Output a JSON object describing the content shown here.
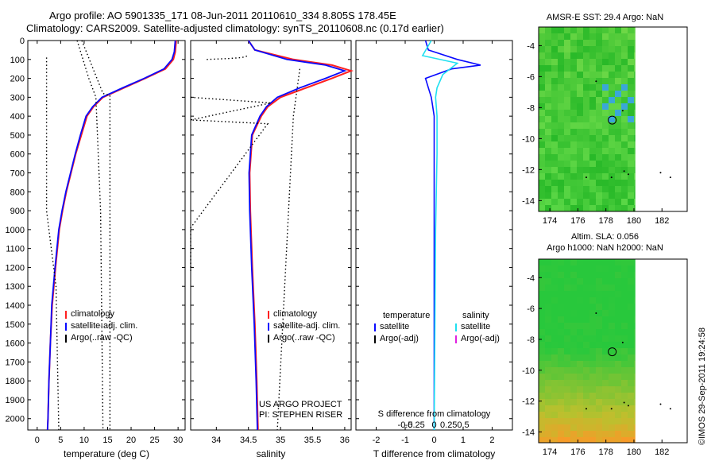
{
  "header": {
    "title_line1": "Argo profile: AO 5901335_171 08-Jun-2011 20110610_334 8.805S 178.45E",
    "title_line2": "Climatology: CARS2009. Satellite-adjusted climatology: synTS_20110608.nc (0.17d earlier)"
  },
  "watermark": "©IMOS 29-Sep-2011 19:24:58",
  "colors": {
    "climatology": "#ff2020",
    "satellite": "#0a0aff",
    "argo": "#000000",
    "sal_satellite": "#20e0f0",
    "sal_argo": "#e020e0"
  },
  "depth_axis": {
    "ticks": [
      "0",
      "100",
      "200",
      "300",
      "400",
      "500",
      "600",
      "700",
      "800",
      "900",
      "1000",
      "1100",
      "1200",
      "1300",
      "1400",
      "1500",
      "1600",
      "1700",
      "1800",
      "1900",
      "2000"
    ]
  },
  "chart_data": [
    {
      "type": "line",
      "title": "temperature profile",
      "xlabel": "temperature (deg C)",
      "ylabel": "depth",
      "xlim": [
        -2,
        31.5
      ],
      "ylim": [
        2060,
        0
      ],
      "xticks": [
        "0",
        "5",
        "10",
        "15",
        "20",
        "25",
        "30"
      ],
      "xtick_values": [
        0,
        5,
        10,
        15,
        20,
        25,
        30
      ],
      "legend": [
        "climatology",
        "satellite-adj. clim.",
        "Argo(..raw -QC)"
      ],
      "legend_position": "center-right",
      "series": [
        {
          "name": "climatology",
          "depth": [
            0,
            60,
            100,
            150,
            200,
            250,
            300,
            350,
            400,
            500,
            600,
            700,
            800,
            900,
            1000,
            1200,
            1400,
            1600,
            1800,
            2000,
            2060
          ],
          "values": [
            29.6,
            29.4,
            29.0,
            27.3,
            23.0,
            18.5,
            14.0,
            12.0,
            10.6,
            9.4,
            8.2,
            7.2,
            6.2,
            5.4,
            4.7,
            3.9,
            3.2,
            2.8,
            2.5,
            2.3,
            2.2
          ]
        },
        {
          "name": "satellite-adj. clim.",
          "depth": [
            0,
            60,
            100,
            150,
            200,
            250,
            300,
            350,
            400,
            500,
            600,
            700,
            800,
            900,
            1000,
            1200,
            1400,
            1600,
            1800,
            2000,
            2060
          ],
          "values": [
            29.4,
            29.2,
            28.7,
            27.0,
            22.8,
            18.2,
            13.8,
            11.8,
            10.4,
            9.2,
            8.1,
            7.1,
            6.1,
            5.3,
            4.6,
            3.8,
            3.1,
            2.8,
            2.5,
            2.3,
            2.2
          ]
        },
        {
          "name": "Argo raw envelope (left)",
          "depth": [
            90,
            900,
            1300,
            2060
          ],
          "values": [
            2.0,
            2.0,
            4.0,
            4.6
          ]
        },
        {
          "name": "Argo raw envelope (mid)",
          "depth": [
            0,
            200,
            300,
            900,
            2060
          ],
          "values": [
            8.5,
            11.0,
            12.5,
            13.5,
            14.0
          ]
        },
        {
          "name": "Argo raw envelope (right)",
          "depth": [
            0,
            280,
            290,
            900,
            2060
          ],
          "values": [
            9.5,
            14.0,
            15.5,
            15.5,
            15.5
          ]
        }
      ]
    },
    {
      "type": "line",
      "title": "salinity profile",
      "xlabel": "salinity",
      "ylabel": "depth",
      "xlim": [
        33.6,
        36.1
      ],
      "ylim": [
        2060,
        0
      ],
      "xticks": [
        "34",
        "34.5",
        "35",
        "35.5",
        "36"
      ],
      "xtick_values": [
        34,
        34.5,
        35,
        35.5,
        36
      ],
      "legend": [
        "climatology",
        "satellite-adj. clim.",
        "Argo(..raw -QC)"
      ],
      "legend_position": "center-right",
      "annotation": [
        "US ARGO PROJECT",
        "PI: STEPHEN RISER"
      ],
      "series": [
        {
          "name": "climatology",
          "depth": [
            0,
            50,
            100,
            130,
            160,
            200,
            250,
            300,
            350,
            400,
            500,
            700,
            900,
            1200,
            1500,
            1800,
            2060
          ],
          "values": [
            34.5,
            34.6,
            35.2,
            35.8,
            36.1,
            35.8,
            35.4,
            35.0,
            34.8,
            34.7,
            34.56,
            34.52,
            34.53,
            34.56,
            34.6,
            34.63,
            34.65
          ]
        },
        {
          "name": "satellite-adj. clim.",
          "depth": [
            0,
            50,
            100,
            130,
            160,
            200,
            250,
            300,
            350,
            400,
            500,
            700,
            900,
            1200,
            1500,
            1800,
            2060
          ],
          "values": [
            34.5,
            34.6,
            35.1,
            35.7,
            36.0,
            35.7,
            35.3,
            34.95,
            34.78,
            34.68,
            34.55,
            34.51,
            34.52,
            34.55,
            34.59,
            34.62,
            34.64
          ]
        },
        {
          "name": "Argo raw top",
          "depth": [
            100,
            95,
            90,
            80
          ],
          "values": [
            33.85,
            34.2,
            34.4,
            34.5
          ]
        },
        {
          "name": "Argo raw QC horizontals",
          "depth": [
            300,
            330,
            420,
            440,
            990,
            1220
          ],
          "values": [
            33.6,
            34.85,
            33.6,
            34.8,
            33.6,
            33.6
          ]
        },
        {
          "name": "Argo raw envelope (right)",
          "depth": [
            150,
            400,
            2060
          ],
          "values": [
            35.3,
            35.2,
            34.95
          ]
        }
      ]
    },
    {
      "type": "line",
      "title": "difference from climatology",
      "xlabel": "T difference from climatology",
      "ylabel": "depth",
      "xlim": [
        -2.7,
        2.7
      ],
      "ylim": [
        2060,
        0
      ],
      "xticks": [
        "-2",
        "-1",
        "0",
        "1",
        "2"
      ],
      "xtick_values": [
        -2,
        -1,
        0,
        1,
        2
      ],
      "secondary_xlabel": "S difference from climatology",
      "secondary_xticks": [
        "-0.5",
        "-0.25",
        "0",
        "0.25",
        "0.5"
      ],
      "legend_headers": [
        "temperature",
        "salinity"
      ],
      "legend": [
        "satellite",
        "Argo(-adj)",
        "satellite",
        "Argo(-adj)"
      ],
      "series": [
        {
          "name": "temperature satellite",
          "depth": [
            0,
            50,
            100,
            130,
            150,
            200,
            250,
            300,
            400,
            600,
            1000,
            1500,
            2060
          ],
          "values": [
            -0.3,
            -0.2,
            0.8,
            1.6,
            0.6,
            -0.3,
            -0.2,
            -0.1,
            0.0,
            0.0,
            0.0,
            0.0,
            0.0
          ]
        },
        {
          "name": "salinity satellite",
          "depth": [
            0,
            80,
            120,
            180,
            250,
            300,
            400,
            600,
            1000,
            2060
          ],
          "values": [
            -0.1,
            -0.4,
            0.8,
            0.3,
            0.1,
            0.05,
            0.1,
            0.1,
            0.05,
            0.0
          ]
        }
      ]
    }
  ],
  "maps": [
    {
      "title_lines": [
        "AMSR-E SST: 29.4  Argo: NaN"
      ],
      "xticks": [
        "174",
        "176",
        "178",
        "180",
        "182"
      ],
      "yticks": [
        "-4",
        "-6",
        "-8",
        "-10",
        "-12",
        "-14"
      ],
      "lon_range": [
        173.2,
        183.8
      ],
      "lat_range": [
        -14.7,
        -2.8
      ],
      "marker": {
        "lon": 178.45,
        "lat": -8.805
      }
    },
    {
      "title_lines": [
        "Altim. SLA: 0.056",
        "Argo h1000: NaN  h2000: NaN"
      ],
      "xticks": [
        "174",
        "176",
        "178",
        "180",
        "182"
      ],
      "yticks": [
        "-4",
        "-6",
        "-8",
        "-10",
        "-12",
        "-14"
      ],
      "lon_range": [
        173.2,
        183.8
      ],
      "lat_range": [
        -14.7,
        -2.8
      ],
      "marker": {
        "lon": 178.45,
        "lat": -8.805
      }
    }
  ]
}
